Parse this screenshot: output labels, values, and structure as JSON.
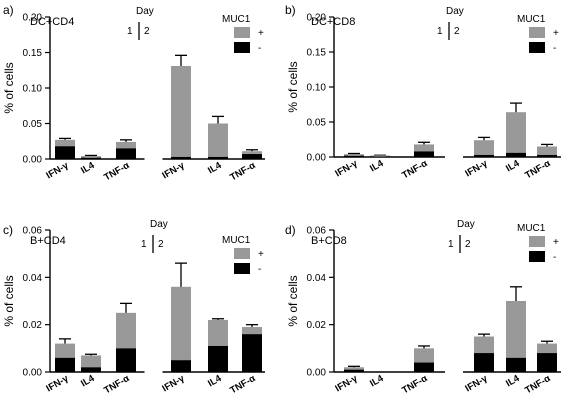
{
  "figure_legend": {
    "day_title": "Day",
    "day_labels": [
      "1",
      "2"
    ],
    "muc1_title": "MUC1",
    "series_labels": [
      "+",
      "-"
    ],
    "colors": {
      "MUC1+": "#999999",
      "MUC1-": "#000000",
      "axis": "#000000"
    }
  },
  "chart_data": [
    {
      "panel": "a)",
      "title": "DC+CD4",
      "type": "bar",
      "stacked": true,
      "error_bars": "on top of each segment",
      "ylabel": "% of cells",
      "ylim": [
        0,
        0.2
      ],
      "yticks": [
        0.0,
        0.05,
        0.1,
        0.15,
        0.2
      ],
      "ytick_labels": [
        "0.00",
        "0.05",
        "0.10",
        "0.15",
        "0.20"
      ],
      "groups": [
        {
          "day": "1",
          "categories": [
            "IFN-γ",
            "IL4",
            "TNF-α"
          ]
        },
        {
          "day": "2",
          "categories": [
            "IFN-γ",
            "IL4",
            "TNF-α"
          ]
        }
      ],
      "series": [
        {
          "name": "-",
          "values": [
            0.018,
            0.002,
            0.015,
            0.003,
            0.003,
            0.007
          ],
          "errors": [
            0.004,
            0.0005,
            0.003,
            0.001,
            0.001,
            0.002
          ]
        },
        {
          "name": "+",
          "values": [
            0.009,
            0.002,
            0.009,
            0.128,
            0.047,
            0.004
          ],
          "errors": [
            0.002,
            0.001,
            0.003,
            0.015,
            0.01,
            0.002
          ]
        }
      ]
    },
    {
      "panel": "b)",
      "title": "DC+CD8",
      "type": "bar",
      "stacked": true,
      "error_bars": "on top of each segment",
      "ylabel": "% of cells",
      "ylim": [
        0,
        0.2
      ],
      "yticks": [
        0.0,
        0.05,
        0.1,
        0.15,
        0.2
      ],
      "ytick_labels": [
        "0.00",
        "0.05",
        "0.10",
        "0.15",
        "0.20"
      ],
      "groups": [
        {
          "day": "1",
          "categories": [
            "IFN-γ",
            "IL4",
            "TNF-α"
          ]
        },
        {
          "day": "2",
          "categories": [
            "IFN-γ",
            "IL4",
            "TNF-α"
          ]
        }
      ],
      "series": [
        {
          "name": "-",
          "values": [
            0.002,
            0.001,
            0.008,
            0.003,
            0.006,
            0.003
          ],
          "errors": [
            0.0005,
            0.0005,
            0.002,
            0.001,
            0.002,
            0.001
          ]
        },
        {
          "name": "+",
          "values": [
            0.002,
            0.001,
            0.01,
            0.021,
            0.058,
            0.012
          ],
          "errors": [
            0.001,
            0.0005,
            0.003,
            0.004,
            0.013,
            0.003
          ]
        }
      ]
    },
    {
      "panel": "c)",
      "title": "B+CD4",
      "type": "bar",
      "stacked": true,
      "error_bars": "on top of each segment",
      "ylabel": "% of cells",
      "ylim": [
        0,
        0.06
      ],
      "yticks": [
        0.0,
        0.02,
        0.04,
        0.06
      ],
      "ytick_labels": [
        "0.00",
        "0.02",
        "0.04",
        "0.06"
      ],
      "groups": [
        {
          "day": "1",
          "categories": [
            "IFN-γ",
            "IL4",
            "TNF-α"
          ]
        },
        {
          "day": "2",
          "categories": [
            "IFN-γ",
            "IL4",
            "TNF-α"
          ]
        }
      ],
      "series": [
        {
          "name": "-",
          "values": [
            0.006,
            0.002,
            0.01,
            0.005,
            0.011,
            0.016
          ],
          "errors": [
            0.001,
            0.0005,
            0.002,
            0.0005,
            0.002,
            0.002
          ]
        },
        {
          "name": "+",
          "values": [
            0.006,
            0.005,
            0.015,
            0.031,
            0.011,
            0.003
          ],
          "errors": [
            0.002,
            0.0005,
            0.004,
            0.01,
            0.0005,
            0.001
          ]
        }
      ]
    },
    {
      "panel": "d)",
      "title": "B+CD8",
      "type": "bar",
      "stacked": true,
      "error_bars": "on top of each segment",
      "ylabel": "% of cells",
      "ylim": [
        0,
        0.06
      ],
      "yticks": [
        0.0,
        0.02,
        0.04,
        0.06
      ],
      "ytick_labels": [
        "0.00",
        "0.02",
        "0.04",
        "0.06"
      ],
      "groups": [
        {
          "day": "1",
          "categories": [
            "IFN-γ",
            "IL4",
            "TNF-α"
          ]
        },
        {
          "day": "2",
          "categories": [
            "IFN-γ",
            "IL4",
            "TNF-α"
          ]
        }
      ],
      "series": [
        {
          "name": "-",
          "values": [
            0.001,
            0.0,
            0.004,
            0.008,
            0.006,
            0.008
          ],
          "errors": [
            0.0003,
            0.0,
            0.001,
            0.002,
            0.001,
            0.001
          ]
        },
        {
          "name": "+",
          "values": [
            0.001,
            0.0,
            0.006,
            0.007,
            0.024,
            0.004
          ],
          "errors": [
            0.0004,
            0.0,
            0.001,
            0.001,
            0.006,
            0.001
          ]
        }
      ]
    }
  ]
}
